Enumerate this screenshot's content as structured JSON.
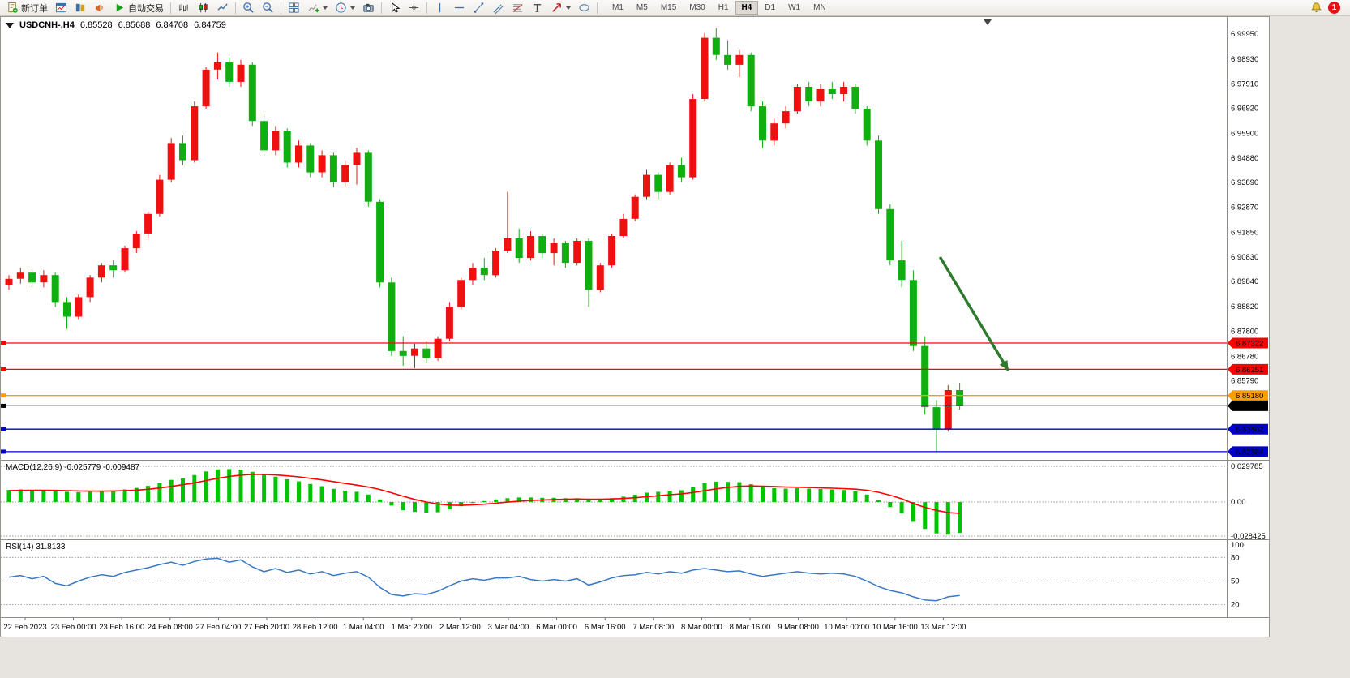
{
  "toolbar": {
    "new_order_label": "新订单",
    "autotrading_label": "自动交易",
    "timeframes": [
      "M1",
      "M5",
      "M15",
      "M30",
      "H1",
      "H4",
      "D1",
      "W1",
      "MN"
    ],
    "active_timeframe": "H4",
    "notification_count": "1"
  },
  "chart_header": {
    "title": "USDCNH-,H4",
    "open": "6.85528",
    "high": "6.85688",
    "low": "6.84708",
    "close": "6.84759"
  },
  "time_axis": [
    "22 Feb 2023",
    "23 Feb 00:00",
    "23 Feb 16:00",
    "24 Feb 08:00",
    "27 Feb 04:00",
    "27 Feb 20:00",
    "28 Feb 12:00",
    "1 Mar 04:00",
    "1 Mar 20:00",
    "2 Mar 12:00",
    "3 Mar 04:00",
    "6 Mar 00:00",
    "6 Mar 16:00",
    "7 Mar 08:00",
    "8 Mar 00:00",
    "8 Mar 16:00",
    "9 Mar 08:00",
    "10 Mar 00:00",
    "10 Mar 16:00",
    "13 Mar 12:00"
  ],
  "chart_data": [
    {
      "type": "candlestick",
      "symbol": "USDCNH-",
      "timeframe": "H4",
      "ylim": [
        6.8255,
        7.0065
      ],
      "bull_color": "#ef1010",
      "bear_color": "#0faf0f",
      "y_ticks": [
        "6.99950",
        "6.98930",
        "6.97910",
        "6.96920",
        "6.95900",
        "6.94880",
        "6.93890",
        "6.92870",
        "6.91850",
        "6.90830",
        "6.89840",
        "6.88820",
        "6.87800",
        "6.86780",
        "6.85790"
      ],
      "price_lines": [
        {
          "price": 6.87322,
          "label": "6.87322",
          "color": "#ff0000"
        },
        {
          "price": 6.86251,
          "label": "6.86251",
          "color": "#ff0000"
        },
        {
          "price": 6.8518,
          "label": "6.85180",
          "color": "#ff9c00"
        },
        {
          "price": 6.84759,
          "label": "6.84759",
          "color": "#000000"
        },
        {
          "price": 6.83802,
          "label": "6.83802",
          "color": "#0000c8"
        },
        {
          "price": 6.82884,
          "label": "6.82884",
          "color": "#0000c8"
        }
      ],
      "annotations": [
        {
          "type": "arrow",
          "color": "#2d7a2d",
          "from": {
            "bar": 80.3,
            "price": 6.9084
          },
          "to": {
            "bar": 86.2,
            "price": 6.862
          }
        }
      ],
      "candles": [
        [
          6.897,
          6.901,
          6.895,
          6.8995
        ],
        [
          6.8995,
          6.904,
          6.8975,
          6.902
        ],
        [
          6.902,
          6.9035,
          6.896,
          6.898
        ],
        [
          6.898,
          6.903,
          6.896,
          6.901
        ],
        [
          6.901,
          6.902,
          6.888,
          6.89
        ],
        [
          6.89,
          6.892,
          6.879,
          6.884
        ],
        [
          6.884,
          6.893,
          6.883,
          6.892
        ],
        [
          6.892,
          6.901,
          6.89,
          6.9
        ],
        [
          6.9,
          6.906,
          6.898,
          6.905
        ],
        [
          6.905,
          6.907,
          6.9,
          6.903
        ],
        [
          6.903,
          6.913,
          6.902,
          6.912
        ],
        [
          6.912,
          6.919,
          6.91,
          6.918
        ],
        [
          6.918,
          6.927,
          6.916,
          6.926
        ],
        [
          6.926,
          6.942,
          6.925,
          6.94
        ],
        [
          6.94,
          6.957,
          6.939,
          6.955
        ],
        [
          6.955,
          6.958,
          6.946,
          6.948
        ],
        [
          6.948,
          6.972,
          6.947,
          6.97
        ],
        [
          6.97,
          6.986,
          6.969,
          6.985
        ],
        [
          6.985,
          6.992,
          6.981,
          6.988
        ],
        [
          6.988,
          6.99,
          6.978,
          6.98
        ],
        [
          6.98,
          6.989,
          6.978,
          6.987
        ],
        [
          6.987,
          6.988,
          6.962,
          6.964
        ],
        [
          6.964,
          6.967,
          6.95,
          6.952
        ],
        [
          6.952,
          6.962,
          6.95,
          6.96
        ],
        [
          6.96,
          6.961,
          6.945,
          6.947
        ],
        [
          6.947,
          6.956,
          6.945,
          6.954
        ],
        [
          6.954,
          6.955,
          6.941,
          6.943
        ],
        [
          6.943,
          6.952,
          6.941,
          6.95
        ],
        [
          6.95,
          6.951,
          6.937,
          6.939
        ],
        [
          6.939,
          6.948,
          6.937,
          6.946
        ],
        [
          6.946,
          6.953,
          6.938,
          6.951
        ],
        [
          6.951,
          6.952,
          6.929,
          6.931
        ],
        [
          6.931,
          6.932,
          6.896,
          6.898
        ],
        [
          6.898,
          6.9,
          6.868,
          6.87
        ],
        [
          6.87,
          6.876,
          6.864,
          6.868
        ],
        [
          6.868,
          6.873,
          6.863,
          6.871
        ],
        [
          6.871,
          6.874,
          6.865,
          6.867
        ],
        [
          6.867,
          6.876,
          6.866,
          6.875
        ],
        [
          6.875,
          6.89,
          6.874,
          6.888
        ],
        [
          6.888,
          6.9,
          6.887,
          6.899
        ],
        [
          6.899,
          6.906,
          6.897,
          6.904
        ],
        [
          6.904,
          6.908,
          6.899,
          6.901
        ],
        [
          6.901,
          6.912,
          6.9,
          6.911
        ],
        [
          6.911,
          6.935,
          6.91,
          6.916
        ],
        [
          6.916,
          6.92,
          6.906,
          6.908
        ],
        [
          6.908,
          6.919,
          6.907,
          6.917
        ],
        [
          6.917,
          6.918,
          6.908,
          6.91
        ],
        [
          6.91,
          6.916,
          6.905,
          6.914
        ],
        [
          6.914,
          6.915,
          6.904,
          6.906
        ],
        [
          6.906,
          6.916,
          6.905,
          6.915
        ],
        [
          6.915,
          6.916,
          6.888,
          6.895
        ],
        [
          6.895,
          6.906,
          6.894,
          6.905
        ],
        [
          6.905,
          6.918,
          6.904,
          6.917
        ],
        [
          6.917,
          6.926,
          6.916,
          6.924
        ],
        [
          6.924,
          6.934,
          6.923,
          6.933
        ],
        [
          6.933,
          6.944,
          6.932,
          6.942
        ],
        [
          6.942,
          6.943,
          6.932,
          6.935
        ],
        [
          6.935,
          6.947,
          6.934,
          6.946
        ],
        [
          6.946,
          6.949,
          6.939,
          6.941
        ],
        [
          6.941,
          6.975,
          6.94,
          6.973
        ],
        [
          6.973,
          7.0,
          6.972,
          6.998
        ],
        [
          6.998,
          7.002,
          6.989,
          6.991
        ],
        [
          6.991,
          6.997,
          6.985,
          6.987
        ],
        [
          6.987,
          6.993,
          6.982,
          6.991
        ],
        [
          6.991,
          6.992,
          6.968,
          6.97
        ],
        [
          6.97,
          6.972,
          6.953,
          6.956
        ],
        [
          6.956,
          6.965,
          6.954,
          6.963
        ],
        [
          6.963,
          6.97,
          6.961,
          6.968
        ],
        [
          6.968,
          6.979,
          6.967,
          6.978
        ],
        [
          6.978,
          6.98,
          6.97,
          6.972
        ],
        [
          6.972,
          6.979,
          6.97,
          6.977
        ],
        [
          6.977,
          6.98,
          6.973,
          6.975
        ],
        [
          6.975,
          6.98,
          6.972,
          6.978
        ],
        [
          6.978,
          6.979,
          6.967,
          6.969
        ],
        [
          6.969,
          6.97,
          6.954,
          6.956
        ],
        [
          6.956,
          6.958,
          6.926,
          6.928
        ],
        [
          6.928,
          6.93,
          6.905,
          6.907
        ],
        [
          6.907,
          6.915,
          6.896,
          6.899
        ],
        [
          6.899,
          6.903,
          6.87,
          6.872
        ],
        [
          6.872,
          6.876,
          6.844,
          6.847
        ],
        [
          6.847,
          6.85,
          6.829,
          6.838
        ],
        [
          6.838,
          6.856,
          6.837,
          6.854
        ],
        [
          6.854,
          6.857,
          6.846,
          6.8476
        ]
      ]
    },
    {
      "type": "bar+line",
      "name": "MACD",
      "label": "MACD(12,26,9) -0.025779 -0.009487",
      "histogram_color": "#00c400",
      "signal_color": "#ff0000",
      "y_ticks": [
        "0.029785",
        "0.00",
        "-0.028425"
      ],
      "histogram": [
        0.01,
        0.0105,
        0.01,
        0.0098,
        0.0092,
        0.0085,
        0.0082,
        0.0085,
        0.009,
        0.0095,
        0.0105,
        0.0118,
        0.0135,
        0.0158,
        0.0185,
        0.0198,
        0.0225,
        0.0255,
        0.0272,
        0.0275,
        0.027,
        0.0252,
        0.0228,
        0.0212,
        0.019,
        0.0172,
        0.015,
        0.0132,
        0.011,
        0.0095,
        0.0085,
        0.0062,
        0.0022,
        -0.003,
        -0.0068,
        -0.0082,
        -0.0088,
        -0.0085,
        -0.0062,
        -0.0035,
        -0.0008,
        0.0008,
        0.0022,
        0.0032,
        0.0038,
        0.0038,
        0.0035,
        0.0035,
        0.0032,
        0.0032,
        0.0022,
        0.0022,
        0.0032,
        0.0045,
        0.006,
        0.0078,
        0.0085,
        0.0095,
        0.0098,
        0.0125,
        0.0158,
        0.017,
        0.0168,
        0.0165,
        0.0148,
        0.0125,
        0.0115,
        0.0112,
        0.0115,
        0.0112,
        0.0108,
        0.0105,
        0.01,
        0.0088,
        0.0062,
        0.0015,
        -0.0042,
        -0.0095,
        -0.0165,
        -0.0225,
        -0.0262,
        -0.0272,
        -0.0258
      ],
      "signal": [
        0.0095,
        0.0097,
        0.0098,
        0.0098,
        0.0097,
        0.0095,
        0.0092,
        0.0091,
        0.0091,
        0.0092,
        0.0094,
        0.0099,
        0.0106,
        0.0117,
        0.013,
        0.0144,
        0.016,
        0.0179,
        0.0198,
        0.0213,
        0.0225,
        0.023,
        0.023,
        0.0226,
        0.0219,
        0.021,
        0.0198,
        0.0185,
        0.017,
        0.0155,
        0.0141,
        0.0125,
        0.0104,
        0.0077,
        0.0048,
        0.0022,
        0.0,
        -0.0017,
        -0.0026,
        -0.0028,
        -0.0024,
        -0.0018,
        -0.001,
        -0.0001,
        0.0007,
        0.0013,
        0.0017,
        0.0021,
        0.0023,
        0.0025,
        0.0024,
        0.0024,
        0.0026,
        0.003,
        0.0036,
        0.0044,
        0.0052,
        0.0061,
        0.0068,
        0.0079,
        0.0095,
        0.011,
        0.0122,
        0.0131,
        0.0134,
        0.0132,
        0.0129,
        0.0125,
        0.0123,
        0.0121,
        0.0118,
        0.0115,
        0.0112,
        0.0107,
        0.0098,
        0.0081,
        0.0057,
        0.0027,
        -0.0012,
        -0.0045,
        -0.007,
        -0.0088,
        -0.0095
      ]
    },
    {
      "type": "line",
      "name": "RSI",
      "label": "RSI(14) 31.8133",
      "line_color": "#3a78c3",
      "levels": [
        80,
        50,
        20
      ],
      "y_ticks": [
        "100",
        "80",
        "50",
        "20"
      ],
      "values": [
        55,
        57,
        53,
        56,
        47,
        44,
        50,
        55,
        58,
        56,
        61,
        64,
        67,
        71,
        74,
        70,
        75,
        78,
        79,
        74,
        77,
        68,
        62,
        66,
        61,
        64,
        59,
        62,
        57,
        60,
        62,
        55,
        42,
        33,
        31,
        34,
        33,
        37,
        44,
        50,
        53,
        51,
        54,
        54,
        56,
        52,
        50,
        52,
        50,
        53,
        45,
        49,
        54,
        57,
        58,
        61,
        59,
        62,
        60,
        64,
        66,
        64,
        62,
        63,
        59,
        56,
        58,
        60,
        62,
        60,
        59,
        60,
        59,
        56,
        50,
        43,
        38,
        35,
        30,
        26,
        25,
        30,
        31.8
      ]
    }
  ]
}
